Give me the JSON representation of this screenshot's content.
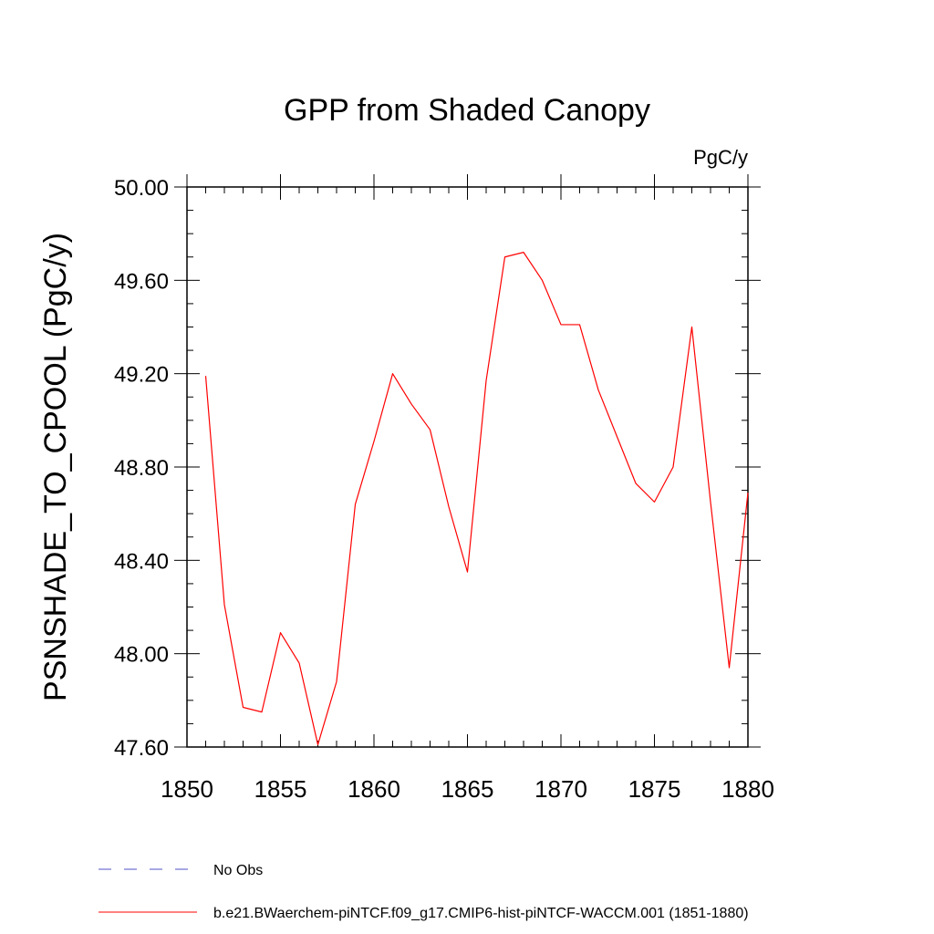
{
  "chart_data": {
    "type": "line",
    "title": "GPP from Shaded Canopy",
    "units_label": "PgC/y",
    "xlabel": "",
    "ylabel": "PSNSHADE_TO_CPOOL  (PgC/y)",
    "xlim": [
      1850,
      1880
    ],
    "ylim": [
      47.6,
      50.0
    ],
    "x_ticks": [
      1850,
      1855,
      1860,
      1865,
      1870,
      1875,
      1880
    ],
    "x_tick_labels": [
      "1850",
      "1855",
      "1860",
      "1865",
      "1870",
      "1875",
      "1880"
    ],
    "y_ticks": [
      47.6,
      48.0,
      48.4,
      48.8,
      49.2,
      49.6,
      50.0
    ],
    "y_tick_labels": [
      "47.60",
      "48.00",
      "48.40",
      "48.80",
      "49.20",
      "49.60",
      "50.00"
    ],
    "grid": false,
    "legend_position": "bottom",
    "series": [
      {
        "name": "b.e21.BWaerchem-piNTCF.f09_g17.CMIP6-hist-piNTCF-WACCM.001 (1851-1880)",
        "color": "#ff0000",
        "style": "solid",
        "x": [
          1851,
          1852,
          1853,
          1854,
          1855,
          1856,
          1857,
          1858,
          1859,
          1860,
          1861,
          1862,
          1863,
          1864,
          1865,
          1866,
          1867,
          1868,
          1869,
          1870,
          1871,
          1872,
          1873,
          1874,
          1875,
          1876,
          1877,
          1878,
          1879,
          1880
        ],
        "y": [
          49.19,
          48.21,
          47.77,
          47.75,
          48.09,
          47.96,
          47.61,
          47.88,
          48.64,
          48.91,
          49.2,
          49.07,
          48.96,
          48.63,
          48.35,
          49.17,
          49.7,
          49.72,
          49.6,
          49.41,
          49.41,
          49.13,
          48.93,
          48.73,
          48.65,
          48.8,
          49.4,
          48.65,
          47.94,
          48.69
        ]
      },
      {
        "name": "No Obs",
        "color": "#5050c8",
        "style": "dashed",
        "x": [],
        "y": []
      }
    ]
  }
}
